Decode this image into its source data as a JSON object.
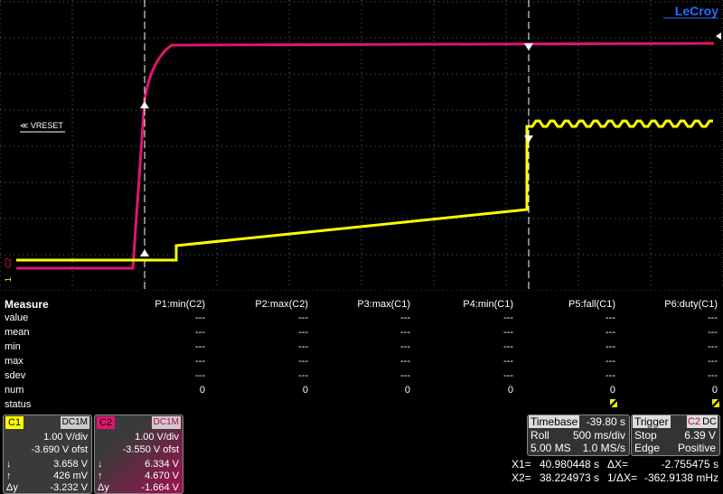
{
  "screen": {
    "logo": "LeCroy",
    "reference_label": "≪ VRESET",
    "channel_markers": [
      "C2",
      "1"
    ]
  },
  "measure": {
    "title": "Measure",
    "columns": [
      "P1:min(C2)",
      "P2:max(C2)",
      "P3:max(C1)",
      "P4:min(C1)",
      "P5:fall(C1)",
      "P6:duty(C1)"
    ],
    "rows": [
      {
        "label": "value",
        "cells": [
          "---",
          "---",
          "---",
          "---",
          "---",
          "---"
        ]
      },
      {
        "label": "mean",
        "cells": [
          "---",
          "---",
          "---",
          "---",
          "---",
          "---"
        ]
      },
      {
        "label": "min",
        "cells": [
          "---",
          "---",
          "---",
          "---",
          "---",
          "---"
        ]
      },
      {
        "label": "max",
        "cells": [
          "---",
          "---",
          "---",
          "---",
          "---",
          "---"
        ]
      },
      {
        "label": "sdev",
        "cells": [
          "---",
          "---",
          "---",
          "---",
          "---",
          "---"
        ]
      },
      {
        "label": "num",
        "cells": [
          "0",
          "0",
          "0",
          "0",
          "0",
          "0"
        ]
      },
      {
        "label": "status"
      }
    ]
  },
  "channels": [
    {
      "name": "C1",
      "coupling": "DC1M",
      "scale": "1.00 V/div",
      "offset": "-3.690 V ofst",
      "rows": [
        {
          "label": "↓",
          "value": "3.658 V"
        },
        {
          "label": "↑",
          "value": "426 mV"
        },
        {
          "label": "Δy",
          "value": "-3.232 V"
        }
      ]
    },
    {
      "name": "C2",
      "coupling": "DC1M",
      "scale": "1.00 V/div",
      "offset": "-3.550 V ofst",
      "rows": [
        {
          "label": "↓",
          "value": "6.334 V"
        },
        {
          "label": "↑",
          "value": "4.670 V"
        },
        {
          "label": "Δy",
          "value": "-1.664 V"
        }
      ]
    }
  ],
  "timebase": {
    "title": "Timebase",
    "delay": "-39.80 s",
    "rows": [
      [
        "Roll",
        "500 ms/div"
      ],
      [
        "5.00 MS",
        "1.0 MS/s"
      ]
    ]
  },
  "trigger": {
    "title": "Trigger",
    "source": "C2",
    "coupling": "DC",
    "rows": [
      [
        "Stop",
        "6.39 V"
      ],
      [
        "Edge",
        "Positive"
      ]
    ]
  },
  "cursors": [
    [
      "X1=",
      "40.980448 s",
      "ΔX=",
      "-2.755475 s"
    ],
    [
      "X2=",
      "38.224973 s",
      "1/ΔX=",
      "-362.9138 mHz"
    ]
  ]
}
